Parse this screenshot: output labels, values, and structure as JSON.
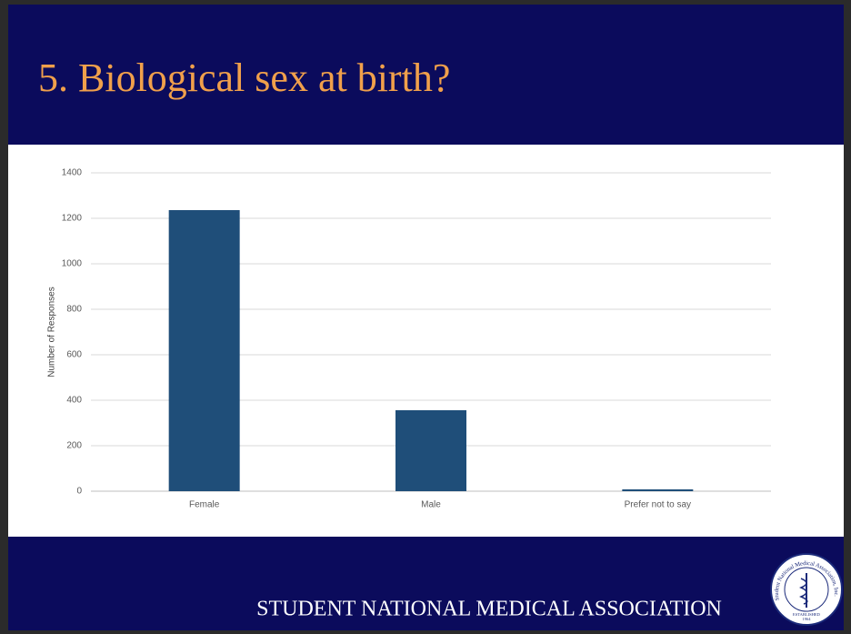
{
  "slide": {
    "title": "5. Biological sex at birth?",
    "footer": "STUDENT NATIONAL MEDICAL ASSOCIATION",
    "logo": {
      "ring_text": "Student National Medical Association, Inc.",
      "established": "ESTABLISHED",
      "year": "1964"
    }
  },
  "chart_data": {
    "type": "bar",
    "y_label": "Number of Responses",
    "categories": [
      "Female",
      "Male",
      "Prefer not to say"
    ],
    "values": [
      1236,
      356,
      8
    ],
    "color": "#1f4e79",
    "ylim": [
      0,
      1400
    ],
    "yticks": [
      0,
      200,
      400,
      600,
      800,
      1000,
      1200,
      1400
    ],
    "grid": true
  }
}
